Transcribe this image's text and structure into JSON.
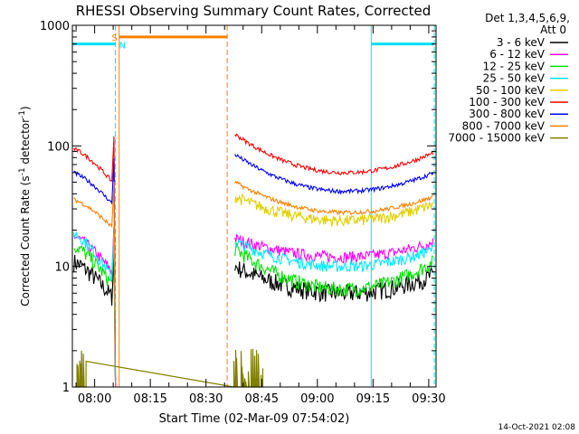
{
  "chart_data": {
    "type": "line",
    "title": "RHESSI Observing Summary Count Rates, Corrected",
    "xlabel": "Start Time (02-Mar-09 07:54:02)",
    "ylabel_main": "Corrected Count Rate (s",
    "ylabel_sup1": "-1",
    "ylabel_mid": " detector",
    "ylabel_sup2": "-1",
    "ylabel_end": ")",
    "y_scale": "log",
    "ylim": [
      1,
      1000
    ],
    "xlim": [
      "07:54:02",
      "09:32:00"
    ],
    "y_tick_labels": [
      "1",
      "10",
      "100",
      "1000"
    ],
    "x_tick_labels": [
      "08:00",
      "08:15",
      "08:30",
      "08:45",
      "09:00",
      "09:15",
      "09:30"
    ],
    "x_ticks_min": [
      6,
      21,
      36,
      51,
      66,
      81,
      96
    ],
    "legend_header": [
      "Det 1,3,4,5,6,9,",
      "Att 0"
    ],
    "legend_placement": "right",
    "series": [
      {
        "name": "3 - 6 keV",
        "color": "#000000",
        "before": [
          11,
          5.5
        ],
        "after": [
          10,
          6,
          8.5
        ]
      },
      {
        "name": "6 - 12 keV",
        "color": "#ff00ff",
        "before": [
          18,
          9
        ],
        "after": [
          17,
          12,
          16
        ]
      },
      {
        "name": "12 - 25 keV",
        "color": "#00e000",
        "before": [
          15,
          7
        ],
        "after": [
          14,
          6.5,
          11
        ]
      },
      {
        "name": "25 - 50 keV",
        "color": "#00e8ff",
        "before": [
          19,
          8
        ],
        "after": [
          16,
          10,
          14
        ]
      },
      {
        "name": "50 - 100 keV",
        "color": "#e0d000",
        "before": [
          0,
          0
        ],
        "after": [
          38,
          24,
          33
        ]
      },
      {
        "name": "100 - 300 keV",
        "color": "#ff0000",
        "before": [
          95,
          50
        ],
        "after": [
          125,
          60,
          88
        ]
      },
      {
        "name": "300 - 800 keV",
        "color": "#0000ff",
        "before": [
          60,
          33
        ],
        "after": [
          85,
          42,
          60
        ]
      },
      {
        "name": "800 - 7000 keV",
        "color": "#ff8000",
        "before": [
          36,
          21
        ],
        "after": [
          50,
          28,
          38
        ]
      },
      {
        "name": "7000 - 15000 keV",
        "color": "#808000",
        "before": [
          2,
          1
        ],
        "after": [
          2,
          1,
          1
        ]
      }
    ],
    "flag_labels": {
      "saa": "S",
      "night": "N"
    },
    "flags": {
      "night_level": 700,
      "saa_level": 800,
      "night_periods": [
        [
          0,
          11.6
        ],
        [
          80.5,
          97.5
        ]
      ],
      "saa_period": [
        12.6,
        41.7
      ]
    },
    "timestamp": "14-Oct-2021 02:08"
  },
  "colors": {
    "axis": "#000000",
    "night": "#00e0ff",
    "saa": "#ff8000"
  }
}
